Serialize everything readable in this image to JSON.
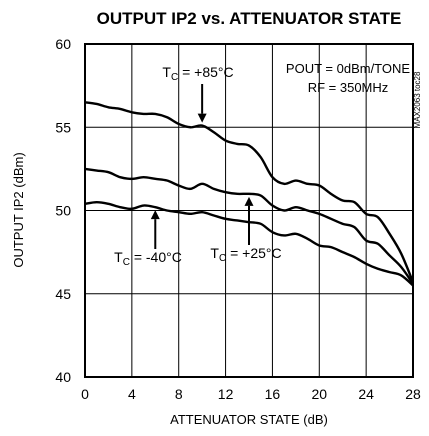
{
  "chart_data": {
    "type": "line",
    "title": "OUTPUT IP2 vs. ATTENUATOR STATE",
    "xlabel": "ATTENUATOR STATE (dB)",
    "ylabel": "OUTPUT IP2 (dBm)",
    "xlim": [
      0,
      28
    ],
    "ylim": [
      40,
      60
    ],
    "xticks": [
      0,
      4,
      8,
      12,
      16,
      20,
      24,
      28
    ],
    "yticks": [
      40,
      45,
      50,
      55,
      60
    ],
    "grid": true,
    "conditions": [
      "POUT = 0dBm/TONE",
      "RF = 350MHz"
    ],
    "figure_id": "MAX2063 toc28",
    "series": [
      {
        "name": "TC = +85°C",
        "x": [
          0,
          1,
          2,
          3,
          4,
          5,
          6,
          7,
          8,
          9,
          10,
          11,
          12,
          13,
          14,
          15,
          16,
          17,
          18,
          19,
          20,
          21,
          22,
          23,
          24,
          25,
          26,
          27,
          28
        ],
        "y": [
          56.5,
          56.4,
          56.2,
          56.1,
          55.9,
          55.8,
          55.8,
          55.6,
          55.2,
          55.0,
          55.1,
          54.7,
          54.2,
          54.0,
          53.9,
          53.2,
          52.0,
          51.6,
          51.8,
          51.6,
          51.5,
          51.0,
          50.6,
          50.5,
          49.8,
          49.6,
          48.6,
          47.4,
          45.7
        ]
      },
      {
        "name": "TC = +25°C",
        "x": [
          0,
          1,
          2,
          3,
          4,
          5,
          6,
          7,
          8,
          9,
          10,
          11,
          12,
          13,
          14,
          15,
          16,
          17,
          18,
          19,
          20,
          21,
          22,
          23,
          24,
          25,
          26,
          27,
          28
        ],
        "y": [
          52.5,
          52.4,
          52.3,
          52.0,
          51.9,
          52.0,
          51.9,
          51.8,
          51.5,
          51.3,
          51.6,
          51.3,
          51.1,
          51.0,
          51.0,
          50.9,
          50.3,
          50.0,
          50.2,
          50.0,
          49.8,
          49.5,
          49.2,
          49.0,
          48.2,
          48.0,
          47.3,
          46.6,
          45.6
        ]
      },
      {
        "name": "TC = -40°C",
        "x": [
          0,
          1,
          2,
          3,
          4,
          5,
          6,
          7,
          8,
          9,
          10,
          11,
          12,
          13,
          14,
          15,
          16,
          17,
          18,
          19,
          20,
          21,
          22,
          23,
          24,
          25,
          26,
          27,
          28
        ],
        "y": [
          50.4,
          50.5,
          50.4,
          50.2,
          50.1,
          50.3,
          50.2,
          50.0,
          49.9,
          49.8,
          49.9,
          49.7,
          49.5,
          49.4,
          49.3,
          49.2,
          48.7,
          48.5,
          48.6,
          48.3,
          47.9,
          47.8,
          47.5,
          47.2,
          46.8,
          46.5,
          46.3,
          46.1,
          45.5
        ]
      }
    ],
    "annotations": [
      {
        "series": "TC = +85°C",
        "label_main": "T",
        "label_sub": "C",
        "label_rest": " = +85°C",
        "x": 10
      },
      {
        "series": "TC = +25°C",
        "label_main": "T",
        "label_sub": "C",
        "label_rest": " = +25°C",
        "x": 14
      },
      {
        "series": "TC = -40°C",
        "label_main": "T",
        "label_sub": "C",
        "label_rest": " = -40°C",
        "x": 6
      }
    ],
    "colors": {
      "line": "#000000",
      "grid": "#000000",
      "background": "#ffffff"
    }
  }
}
